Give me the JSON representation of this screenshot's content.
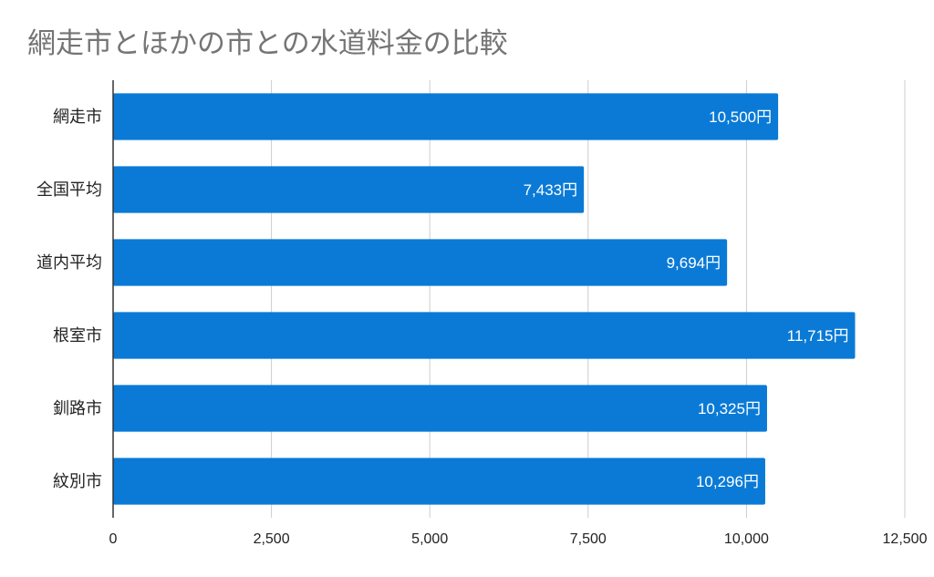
{
  "chart_data": {
    "type": "bar",
    "orientation": "horizontal",
    "title": "網走市とほかの市との水道料金の比較",
    "categories": [
      "網走市",
      "全国平均",
      "道内平均",
      "根室市",
      "釧路市",
      "紋別市"
    ],
    "values": [
      10500,
      7433,
      9694,
      11715,
      10325,
      10296
    ],
    "data_labels": [
      "10,500円",
      "7,433円",
      "9,694円",
      "11,715円",
      "10,325円",
      "10,296円"
    ],
    "xlim": [
      0,
      12500
    ],
    "x_ticks": [
      0,
      2500,
      5000,
      7500,
      10000,
      12500
    ],
    "x_tick_labels": [
      "0",
      "2,500",
      "5,000",
      "7,500",
      "10,000",
      "12,500"
    ],
    "xlabel": "",
    "ylabel": "",
    "grid": "vertical",
    "legend": "none",
    "bar_color": "#0a7ad6"
  }
}
